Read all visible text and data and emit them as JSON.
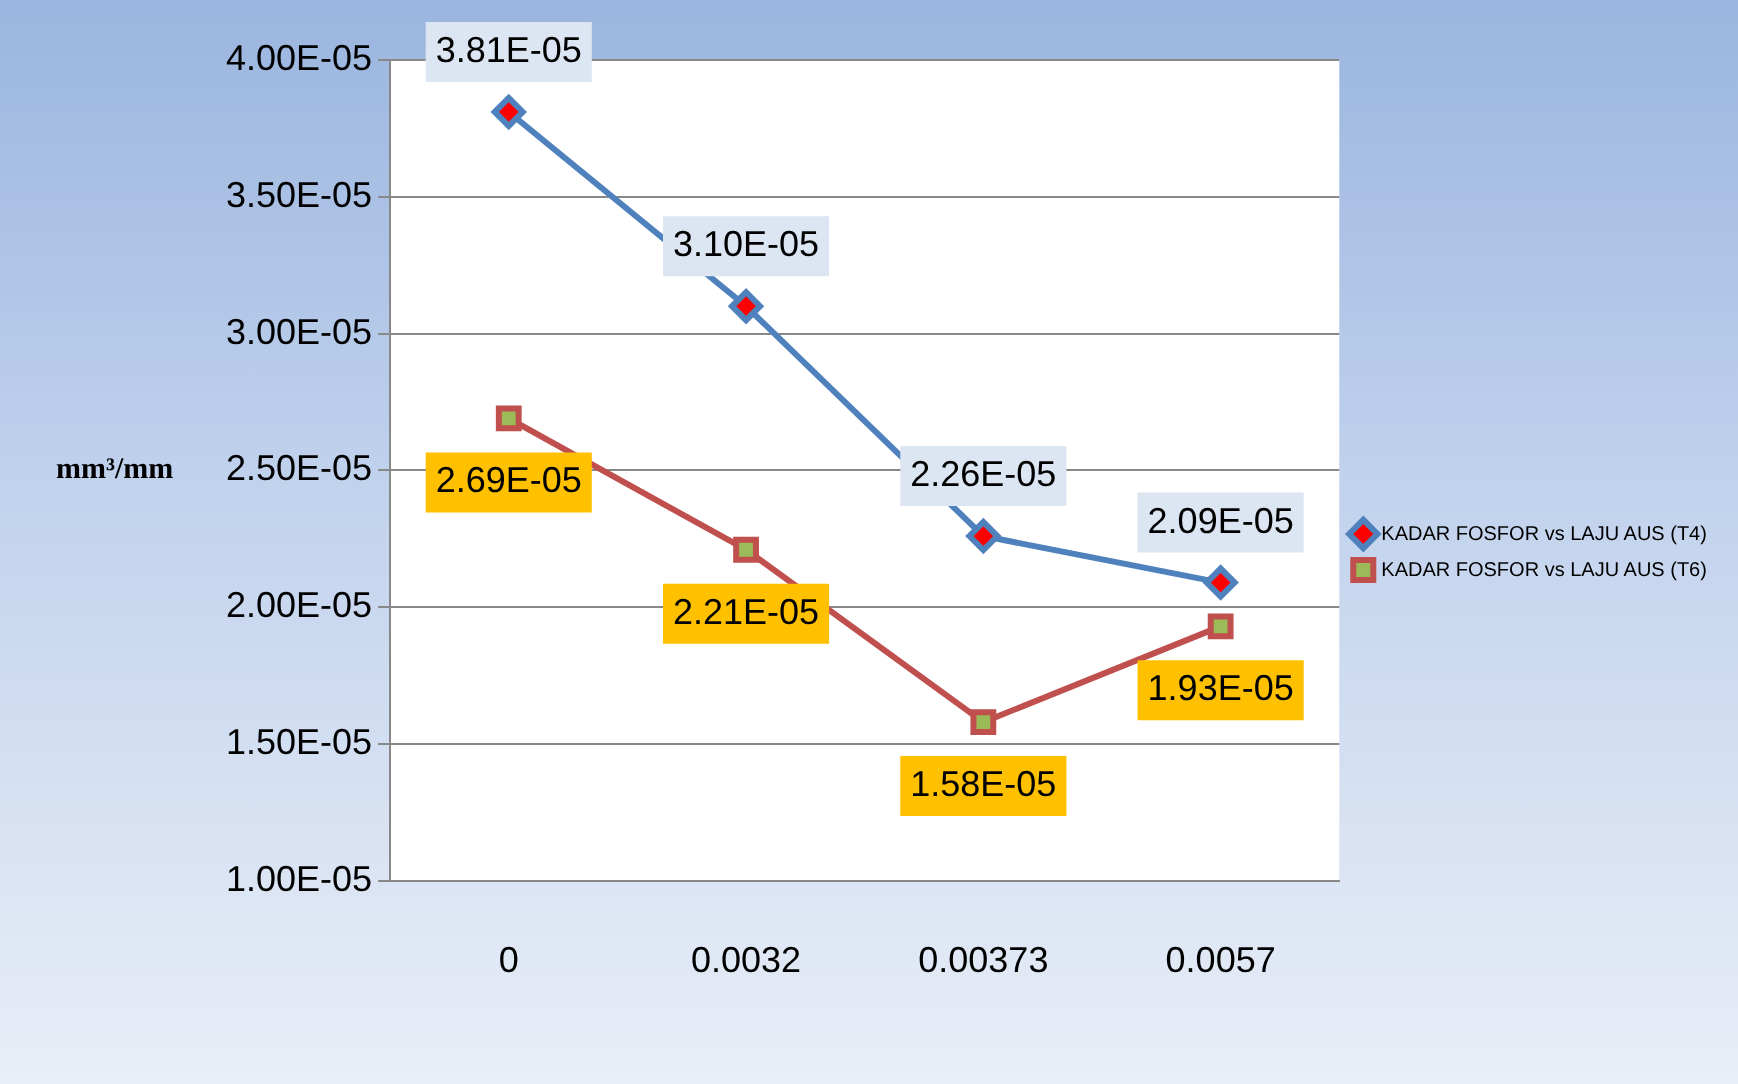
{
  "chart_data": {
    "type": "line",
    "ylabel": "mm³/mm",
    "categories": [
      "0",
      "0.0032",
      "0.00373",
      "0.0057"
    ],
    "series": [
      {
        "name": "KADAR FOSFOR vs LAJU AUS (T4)",
        "color": "#4f81bd",
        "marker": "diamond",
        "values": [
          3.81e-05,
          3.1e-05,
          2.26e-05,
          2.09e-05
        ],
        "value_labels": [
          "3.81E-05",
          "3.10E-05",
          "2.26E-05",
          "2.09E-05"
        ]
      },
      {
        "name": "KADAR FOSFOR vs LAJU AUS (T6)",
        "color": "#c0504d",
        "marker": "square",
        "values": [
          2.69e-05,
          2.21e-05,
          1.58e-05,
          1.93e-05
        ],
        "value_labels": [
          "2.69E-05",
          "2.21E-05",
          "1.58E-05",
          "1.93E-05"
        ]
      }
    ],
    "ylim": [
      1e-05,
      4e-05
    ],
    "yticks": [
      {
        "value": 1e-05,
        "label": "1.00E-05"
      },
      {
        "value": 1.5e-05,
        "label": "1.50E-05"
      },
      {
        "value": 2e-05,
        "label": "2.00E-05"
      },
      {
        "value": 2.5e-05,
        "label": "2.50E-05"
      },
      {
        "value": 3e-05,
        "label": "3.00E-05"
      },
      {
        "value": 3.5e-05,
        "label": "3.50E-05"
      },
      {
        "value": 4e-05,
        "label": "4.00E-05"
      }
    ],
    "grid": "y",
    "legend": "right",
    "line_style": "solid"
  }
}
